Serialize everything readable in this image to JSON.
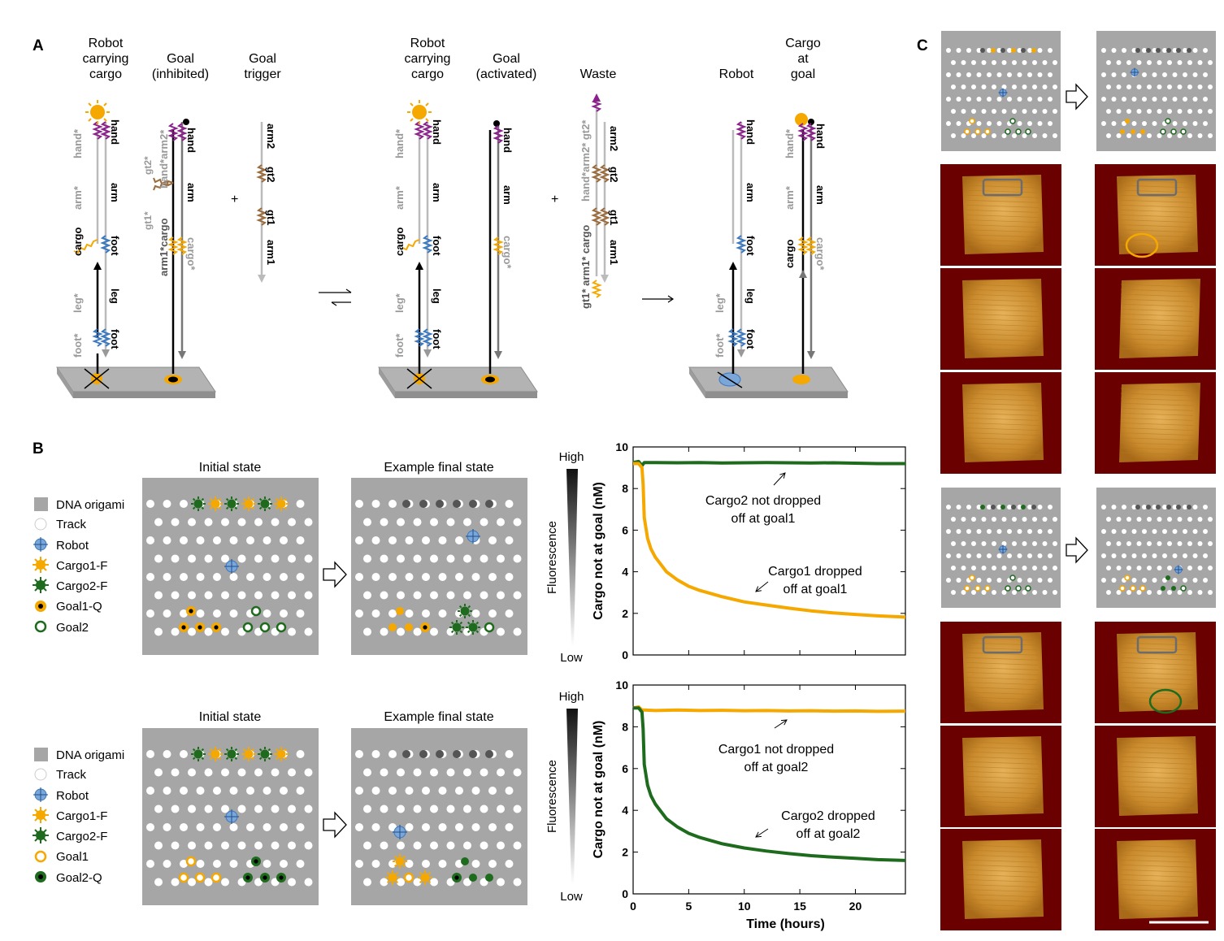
{
  "panels": {
    "a": "A",
    "b": "B",
    "c": "C"
  },
  "panel_a": {
    "headers": [
      "Robot",
      "carrying",
      "cargo",
      "Goal",
      "(inhibited)",
      "Goal",
      "trigger",
      "Robot",
      "carrying",
      "cargo",
      "Goal",
      "(activated)",
      "Waste",
      "Robot",
      "Cargo",
      "at",
      "goal"
    ],
    "strand_labels": {
      "hand": "hand",
      "arm": "arm",
      "foot": "foot",
      "leg": "leg",
      "hand_star": "hand*",
      "arm_star": "arm*",
      "leg_star": "leg*",
      "foot_star": "foot*",
      "cargo": "cargo",
      "cargo_star": "cargo*",
      "arm2": "arm2",
      "gt2": "gt2",
      "gt1": "gt1",
      "arm1": "arm1",
      "gt2_star": "gt2*",
      "gt1_star": "gt1*",
      "goal_inh_left": "hand*arm2*",
      "goal_inh_right": "arm1*cargo",
      "waste_top": "hand*arm2* gt2*",
      "waste_bottom": "gt1* arm1* cargo"
    },
    "operators": {
      "plus": "+",
      "eq": "⇌",
      "arrow": "⟶"
    }
  },
  "panel_b": {
    "legends": [
      {
        "items": [
          {
            "icon": "origami-square-icon",
            "label": "DNA origami"
          },
          {
            "icon": "track-dot-icon",
            "label": "Track"
          },
          {
            "icon": "robot-crosshair-icon",
            "label": "Robot"
          },
          {
            "icon": "orange-sun-icon",
            "label": "Cargo1-F"
          },
          {
            "icon": "green-star-icon",
            "label": "Cargo2-F"
          },
          {
            "icon": "goal1-q-icon",
            "label": "Goal1-Q"
          },
          {
            "icon": "green-ring-icon",
            "label": "Goal2"
          }
        ]
      },
      {
        "items": [
          {
            "icon": "origami-square-icon",
            "label": "DNA origami"
          },
          {
            "icon": "track-dot-icon",
            "label": "Track"
          },
          {
            "icon": "robot-crosshair-icon",
            "label": "Robot"
          },
          {
            "icon": "orange-sun-icon",
            "label": "Cargo1-F"
          },
          {
            "icon": "green-star-icon",
            "label": "Cargo2-F"
          },
          {
            "icon": "orange-ring-icon",
            "label": "Goal1"
          },
          {
            "icon": "goal2-q-icon",
            "label": "Goal2-Q"
          }
        ]
      }
    ],
    "state_titles": {
      "initial": "Initial state",
      "final": "Example final state"
    },
    "fluor": {
      "high": "High",
      "low": "Low",
      "axis": "Fluorescence"
    }
  },
  "chart_data": [
    {
      "type": "line",
      "ylabel": "Cargo not at goal (nM)",
      "xlim": [
        0,
        24.5
      ],
      "ylim": [
        0,
        10
      ],
      "yticks": [
        0,
        2,
        4,
        6,
        8,
        10
      ],
      "series": [
        {
          "color": "#1e6b1e",
          "x": [
            0,
            0.5,
            0.8,
            1,
            2,
            4,
            6,
            8,
            10,
            12,
            14,
            16,
            18,
            20,
            22,
            24.5
          ],
          "y": [
            9.25,
            9.3,
            9.1,
            9.25,
            9.25,
            9.24,
            9.25,
            9.23,
            9.24,
            9.25,
            9.24,
            9.23,
            9.24,
            9.22,
            9.2,
            9.2
          ]
        },
        {
          "color": "#f5a800",
          "x": [
            0,
            0.5,
            0.8,
            0.9,
            1,
            1.3,
            1.6,
            2,
            3,
            4,
            5,
            6,
            8,
            10,
            12,
            14,
            16,
            18,
            20,
            22,
            24.5
          ],
          "y": [
            9.2,
            9.2,
            9.0,
            8.2,
            6.6,
            5.6,
            5.1,
            4.7,
            4.0,
            3.6,
            3.3,
            3.1,
            2.8,
            2.55,
            2.4,
            2.25,
            2.12,
            2.02,
            1.95,
            1.88,
            1.82
          ]
        }
      ],
      "annotations": [
        {
          "line1": "Cargo2 not dropped",
          "line2": "off at goal1"
        },
        {
          "line1": "Cargo1 dropped",
          "line2": "off at goal1"
        }
      ]
    },
    {
      "type": "line",
      "xlabel": "Time (hours)",
      "ylabel": "Cargo not at goal (nM)",
      "xlim": [
        0,
        24.5
      ],
      "ylim": [
        0,
        10
      ],
      "xticks": [
        0,
        5,
        10,
        15,
        20
      ],
      "yticks": [
        0,
        2,
        4,
        6,
        8,
        10
      ],
      "series": [
        {
          "color": "#f5a800",
          "x": [
            0,
            0.5,
            0.8,
            1,
            2,
            4,
            6,
            8,
            10,
            12,
            14,
            16,
            18,
            20,
            22,
            24.5
          ],
          "y": [
            8.9,
            8.95,
            8.8,
            8.8,
            8.78,
            8.8,
            8.78,
            8.79,
            8.77,
            8.78,
            8.76,
            8.77,
            8.75,
            8.76,
            8.74,
            8.75
          ]
        },
        {
          "color": "#1e6b1e",
          "x": [
            0,
            0.5,
            0.8,
            0.9,
            1,
            1.3,
            1.6,
            2,
            3,
            4,
            5,
            6,
            8,
            10,
            12,
            14,
            16,
            18,
            20,
            22,
            24.5
          ],
          "y": [
            8.9,
            8.9,
            8.7,
            7.9,
            6.2,
            5.2,
            4.7,
            4.3,
            3.6,
            3.2,
            2.9,
            2.7,
            2.4,
            2.2,
            2.05,
            1.93,
            1.83,
            1.76,
            1.7,
            1.64,
            1.6
          ]
        }
      ],
      "annotations": [
        {
          "line1": "Cargo1 not dropped",
          "line2": "off at goal2"
        },
        {
          "line1": "Cargo2 dropped",
          "line2": "off at goal2"
        }
      ]
    }
  ],
  "colors": {
    "orange": "#f5a800",
    "green": "#1e6b1e",
    "purple": "#8b1f8b",
    "blue": "#3a78c0",
    "brown": "#9a6a3a",
    "grey": "#a6a6a6",
    "afm_bg": "#6a0000",
    "afm_fg": "#d9a441"
  }
}
